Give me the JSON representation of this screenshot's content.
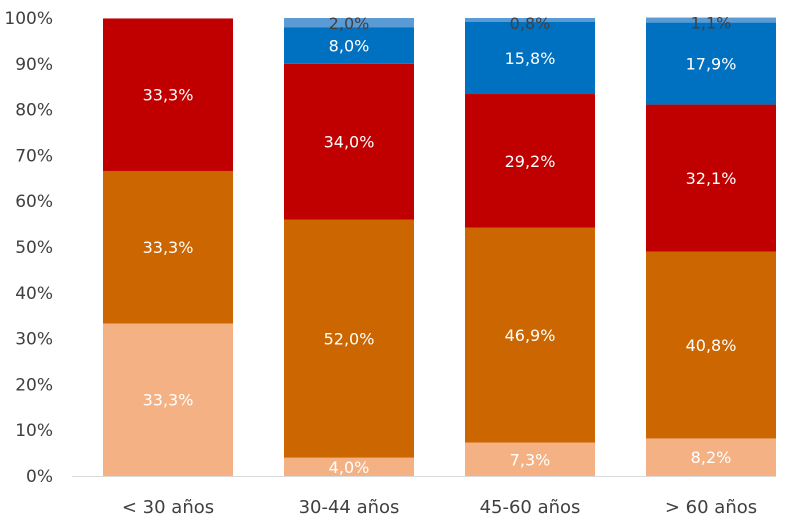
{
  "chart_data": {
    "type": "bar",
    "stacked": true,
    "percent_stacked": true,
    "title": "",
    "xlabel": "",
    "ylabel": "",
    "ylim": [
      0,
      100
    ],
    "y_ticks": [
      "0%",
      "10%",
      "20%",
      "30%",
      "40%",
      "50%",
      "60%",
      "70%",
      "80%",
      "90%",
      "100%"
    ],
    "grid": false,
    "legend": "none",
    "categories": [
      "< 30 años",
      "30-44 años",
      "45-60 años",
      "> 60 años"
    ],
    "series": [
      {
        "color": "#F4B183",
        "label_color": "#ffffff",
        "values": [
          33.3,
          4.0,
          7.3,
          8.2
        ],
        "labels": [
          "33,3%",
          "4,0%",
          "7,3%",
          "8,2%"
        ]
      },
      {
        "color": "#CC6600",
        "label_color": "#ffffff",
        "values": [
          33.3,
          52.0,
          46.9,
          40.8
        ],
        "labels": [
          "33,3%",
          "52,0%",
          "46,9%",
          "40,8%"
        ]
      },
      {
        "color": "#C00000",
        "label_color": "#ffffff",
        "values": [
          33.3,
          34.0,
          29.2,
          32.1
        ],
        "labels": [
          "33,3%",
          "34,0%",
          "29,2%",
          "32,1%"
        ]
      },
      {
        "color": "#0070C0",
        "label_color": "#ffffff",
        "values": [
          0,
          8.0,
          15.8,
          17.9
        ],
        "labels": [
          "",
          "8,0%",
          "15,8%",
          "17,9%"
        ]
      },
      {
        "color": "#5B9BD5",
        "label_color": "#404040",
        "values": [
          0,
          2.0,
          0.8,
          1.1
        ],
        "labels": [
          "",
          "2,0%",
          "0,8%",
          "1,1%"
        ]
      }
    ]
  }
}
